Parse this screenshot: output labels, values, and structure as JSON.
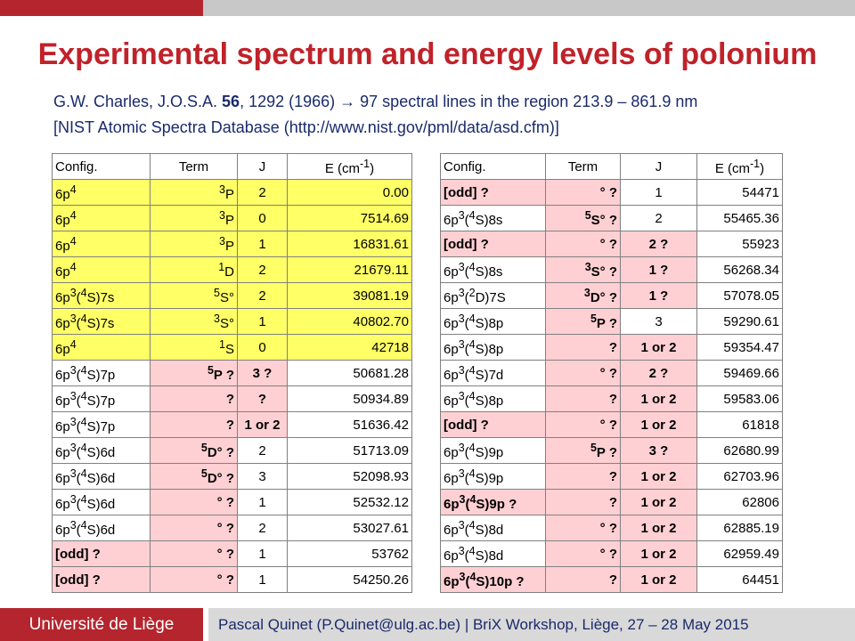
{
  "title": "Experimental spectrum and energy levels of polonium",
  "ref": {
    "authors": "G.W. Charles, J.O.S.A. ",
    "volume": "56",
    "pages_year": ", 1292 (1966) ",
    "arrow": "→",
    "summary": " 97 spectral lines in the region 213.9 – 861.9 nm",
    "nist": "[NIST Atomic Spectra Database (http://www.nist.gov/pml/data/asd.cfm)]"
  },
  "headers": {
    "config": "Config.",
    "term": "Term",
    "j": "J",
    "energy": "E (cm",
    "energy_exp": "-1",
    "energy_close": ")"
  },
  "footer": {
    "university": "Université de Liège",
    "credit": "Pascal Quinet (P.Quinet@ulg.ac.be)  |  BriX Workshop, Liège, 27 – 28 May 2015"
  },
  "colors": {
    "accent_red": "#c0222a",
    "highlight_yellow": "#ffff66",
    "highlight_pink": "#ffd0d3",
    "text_blue": "#1a2a6c"
  },
  "levels_left": [
    {
      "config": "6p<sup>4</sup>",
      "term": "<sup>3</sup>P",
      "j": "2",
      "energy": "0.00",
      "hl": "y"
    },
    {
      "config": "6p<sup>4</sup>",
      "term": "<sup>3</sup>P",
      "j": "0",
      "energy": "7514.69",
      "hl": "y"
    },
    {
      "config": "6p<sup>4</sup>",
      "term": "<sup>3</sup>P",
      "j": "1",
      "energy": "16831.61",
      "hl": "y"
    },
    {
      "config": "6p<sup>4</sup>",
      "term": "<sup>1</sup>D",
      "j": "2",
      "energy": "21679.11",
      "hl": "y"
    },
    {
      "config": "6p<sup>3</sup>(<sup>4</sup>S)7s",
      "term": "<sup>5</sup>S°",
      "j": "2",
      "energy": "39081.19",
      "hl": "y"
    },
    {
      "config": "6p<sup>3</sup>(<sup>4</sup>S)7s",
      "term": "<sup>3</sup>S°",
      "j": "1",
      "energy": "40802.70",
      "hl": "y"
    },
    {
      "config": "6p<sup>4</sup>",
      "term": "<sup>1</sup>S",
      "j": "0",
      "energy": "42718",
      "hl": "y"
    },
    {
      "config": "6p<sup>3</sup>(<sup>4</sup>S)7p",
      "term": "<sup>5</sup>P ?",
      "j": "3 ?",
      "energy": "50681.28",
      "hl": "term-j"
    },
    {
      "config": "6p<sup>3</sup>(<sup>4</sup>S)7p",
      "term": "?",
      "j": "?",
      "energy": "50934.89",
      "hl": "term-j"
    },
    {
      "config": "6p<sup>3</sup>(<sup>4</sup>S)7p",
      "term": "?",
      "j": "1 or 2",
      "energy": "51636.42",
      "hl": "term-j"
    },
    {
      "config": "6p<sup>3</sup>(<sup>4</sup>S)6d",
      "term": "<sup>5</sup>D° ?",
      "j": "2",
      "energy": "51713.09",
      "hl": "term"
    },
    {
      "config": "6p<sup>3</sup>(<sup>4</sup>S)6d",
      "term": "<sup>5</sup>D° ?",
      "j": "3",
      "energy": "52098.93",
      "hl": "term"
    },
    {
      "config": "6p<sup>3</sup>(<sup>4</sup>S)6d",
      "term": "° ?",
      "j": "1",
      "energy": "52532.12",
      "hl": "term"
    },
    {
      "config": "6p<sup>3</sup>(<sup>4</sup>S)6d",
      "term": "° ?",
      "j": "2",
      "energy": "53027.61",
      "hl": "term"
    },
    {
      "config": "[odd] ?",
      "term": "° ?",
      "j": "1",
      "energy": "53762",
      "hl": "cfg-term"
    },
    {
      "config": "[odd] ?",
      "term": "° ?",
      "j": "1",
      "energy": "54250.26",
      "hl": "cfg-term"
    }
  ],
  "levels_right": [
    {
      "config": "[odd] ?",
      "term": "° ?",
      "j": "1",
      "energy": "54471",
      "hl": "cfg-term"
    },
    {
      "config": "6p<sup>3</sup>(<sup>4</sup>S)8s",
      "term": "<sup>5</sup>S° ?",
      "j": "2",
      "energy": "55465.36",
      "hl": "term"
    },
    {
      "config": "[odd] ?",
      "term": "° ?",
      "j": "2 ?",
      "energy": "55923",
      "hl": "cfg-term-j"
    },
    {
      "config": "6p<sup>3</sup>(<sup>4</sup>S)8s",
      "term": "<sup>3</sup>S° ?",
      "j": "1 ?",
      "energy": "56268.34",
      "hl": "term-j"
    },
    {
      "config": "6p<sup>3</sup>(<sup>2</sup>D)7S",
      "term": "<sup>3</sup>D° ?",
      "j": "1 ?",
      "energy": "57078.05",
      "hl": "term-j"
    },
    {
      "config": "6p<sup>3</sup>(<sup>4</sup>S)8p",
      "term": "<sup>5</sup>P ?",
      "j": "3",
      "energy": "59290.61",
      "hl": "term"
    },
    {
      "config": "6p<sup>3</sup>(<sup>4</sup>S)8p",
      "term": "?",
      "j": "1 or 2",
      "energy": "59354.47",
      "hl": "term-j"
    },
    {
      "config": "6p<sup>3</sup>(<sup>4</sup>S)7d",
      "term": "° ?",
      "j": "2 ?",
      "energy": "59469.66",
      "hl": "term-j"
    },
    {
      "config": "6p<sup>3</sup>(<sup>4</sup>S)8p",
      "term": "?",
      "j": "1 or 2",
      "energy": "59583.06",
      "hl": "term-j"
    },
    {
      "config": "[odd] ?",
      "term": "° ?",
      "j": "1 or 2",
      "energy": "61818",
      "hl": "cfg-term-j"
    },
    {
      "config": "6p<sup>3</sup>(<sup>4</sup>S)9p",
      "term": "<sup>5</sup>P ?",
      "j": "3 ?",
      "energy": "62680.99",
      "hl": "term-j"
    },
    {
      "config": "6p<sup>3</sup>(<sup>4</sup>S)9p",
      "term": "?",
      "j": "1 or 2",
      "energy": "62703.96",
      "hl": "term-j"
    },
    {
      "config": "6p<sup>3</sup>(<sup>4</sup>S)9p ?",
      "term": "?",
      "j": "1 or 2",
      "energy": "62806",
      "hl": "cfg-term-j"
    },
    {
      "config": "6p<sup>3</sup>(<sup>4</sup>S)8d",
      "term": "° ?",
      "j": "1 or 2",
      "energy": "62885.19",
      "hl": "term-j"
    },
    {
      "config": "6p<sup>3</sup>(<sup>4</sup>S)8d",
      "term": "° ?",
      "j": "1 or 2",
      "energy": "62959.49",
      "hl": "term-j"
    },
    {
      "config": "6p<sup>3</sup>(<sup>4</sup>S)10p ?",
      "term": "?",
      "j": "1 or 2",
      "energy": "64451",
      "hl": "cfg-term-j"
    }
  ]
}
